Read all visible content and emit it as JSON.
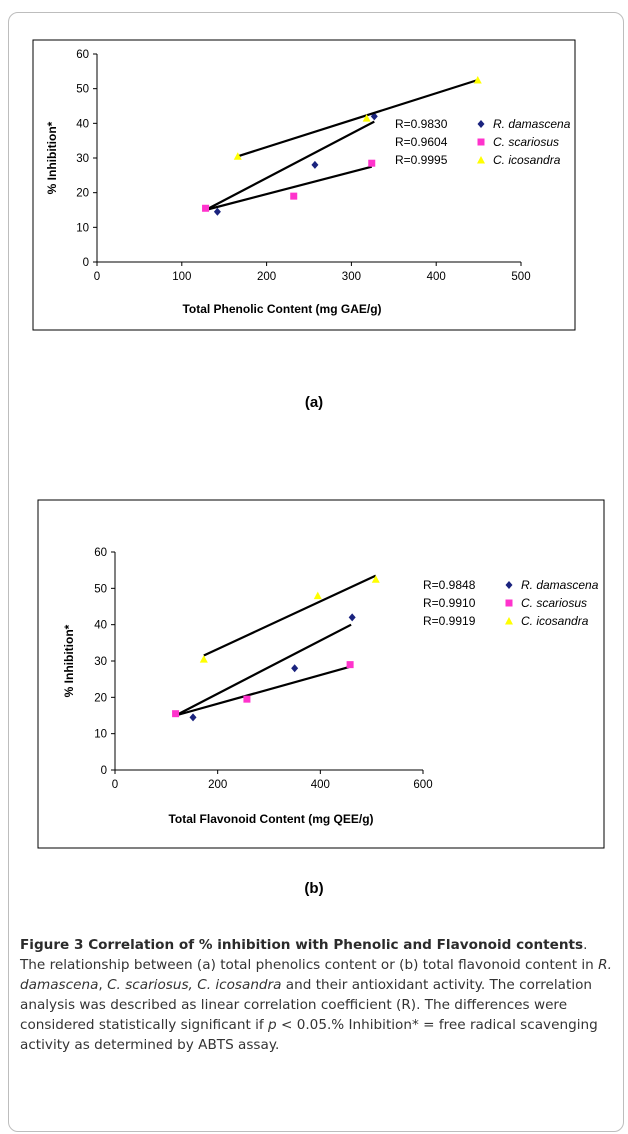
{
  "panel_labels": [
    "(a)",
    "(b)"
  ],
  "caption": {
    "title": "Figure 3 Correlation of % inhibition with Phenolic and Flavonoid contents",
    "p1": ". The relationship between (a) total phenolics content or (b) total flavonoid content in ",
    "sp1": "R. damascena",
    "sep1": ", ",
    "sp2": "C. scariosus,",
    "sep2": " ",
    "sp3": "C. icosandra",
    "p2": " and their antioxidant activity. The correlation analysis was described as linear correlation coefficient (R). The differences were considered statistically significant if ",
    "pvar": "p",
    "p3": " < 0.05.% Inhibition* = free radical scavenging activity as determined by ABTS assay."
  },
  "chart_data": [
    {
      "type": "scatter",
      "xlabel": "Total Phenolic Content (mg GAE/g)",
      "ylabel": "% Inhibition*",
      "xlim": [
        0,
        500
      ],
      "ylim": [
        0,
        60
      ],
      "xticks": [
        "0",
        "100",
        "200",
        "300",
        "400",
        "500"
      ],
      "yticks": [
        "0",
        "10",
        "20",
        "30",
        "40",
        "50",
        "60"
      ],
      "legend_position": "right",
      "series": [
        {
          "name": "R. damascena",
          "r_label": "R=0.9830",
          "color": "#1a237e",
          "marker": "diamond",
          "x": [
            142,
            257,
            327
          ],
          "y": [
            14.5,
            28,
            42
          ],
          "trend": [
            [
              128,
              15
            ],
            [
              327,
              40.5
            ]
          ]
        },
        {
          "name": "C. scariosus",
          "r_label": "R=0.9604",
          "color": "#ff33cc",
          "marker": "square",
          "x": [
            128,
            232,
            324
          ],
          "y": [
            15.5,
            19,
            28.5
          ],
          "trend": [
            [
              128,
              15
            ],
            [
              324,
              27.5
            ]
          ]
        },
        {
          "name": "C. icosandra",
          "r_label": "R=0.9995",
          "color": "#ffff00",
          "marker": "triangle",
          "x": [
            166,
            318,
            449
          ],
          "y": [
            30.5,
            41.5,
            52.5
          ],
          "trend": [
            [
              166,
              30.5
            ],
            [
              449,
              52.5
            ]
          ]
        }
      ]
    },
    {
      "type": "scatter",
      "xlabel": "Total Flavonoid Content (mg QEE/g)",
      "ylabel": "% Inhibition*",
      "xlim": [
        0,
        600
      ],
      "ylim": [
        0,
        60
      ],
      "xticks": [
        "0",
        "200",
        "400",
        "600"
      ],
      "yticks": [
        "0",
        "10",
        "20",
        "30",
        "40",
        "50",
        "60"
      ],
      "legend_position": "right",
      "series": [
        {
          "name": "R. damascena",
          "r_label": "R=0.9848",
          "color": "#1a237e",
          "marker": "diamond",
          "x": [
            152,
            350,
            462
          ],
          "y": [
            14.5,
            28,
            42
          ],
          "trend": [
            [
              118,
              15
            ],
            [
              460,
              40
            ]
          ]
        },
        {
          "name": "C. scariosus",
          "r_label": "R=0.9910",
          "color": "#ff33cc",
          "marker": "square",
          "x": [
            118,
            257,
            458
          ],
          "y": [
            15.5,
            19.5,
            29
          ],
          "trend": [
            [
              118,
              15
            ],
            [
              460,
              28.5
            ]
          ]
        },
        {
          "name": "C. icosandra",
          "r_label": "R=0.9919",
          "color": "#ffff00",
          "marker": "triangle",
          "x": [
            173,
            395,
            508
          ],
          "y": [
            30.5,
            48,
            52.5
          ],
          "trend": [
            [
              173,
              31.5
            ],
            [
              508,
              53.5
            ]
          ]
        }
      ]
    }
  ]
}
